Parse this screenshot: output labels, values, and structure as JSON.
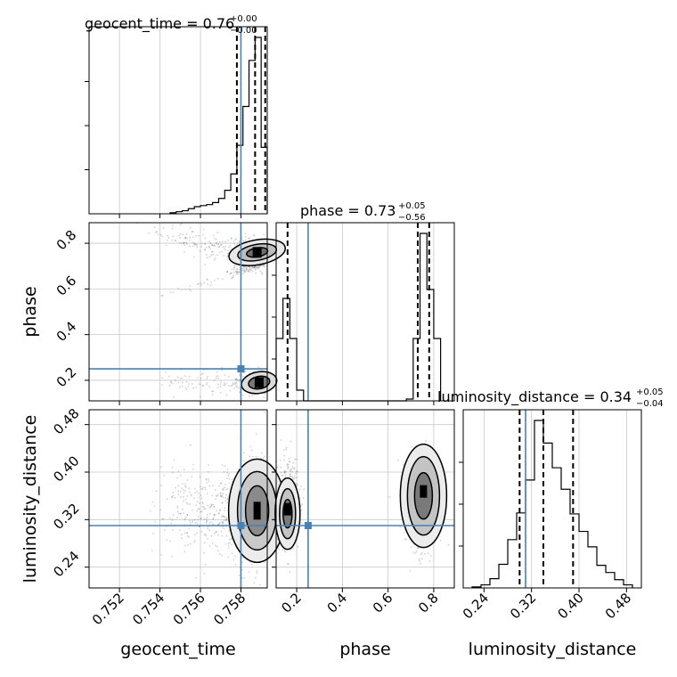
{
  "chart_data": {
    "type": "corner",
    "parameters": [
      "geocent_time",
      "phase",
      "luminosity_distance"
    ],
    "injection": {
      "geocent_time": 0.758,
      "phase": 0.25,
      "luminosity_distance": 0.31
    },
    "accent_color": "#4682b4",
    "ranges": {
      "geocent_time": [
        0.7505,
        0.7593
      ],
      "phase": [
        0.11,
        0.89
      ],
      "luminosity_distance": [
        0.205,
        0.505
      ]
    },
    "ticks": {
      "geocent_time": [
        "0.752",
        "0.754",
        "0.756",
        "0.758"
      ],
      "phase": [
        "0.2",
        "0.4",
        "0.6",
        "0.8"
      ],
      "luminosity_distance": [
        "0.24",
        "0.32",
        "0.40",
        "0.48"
      ]
    },
    "titles": {
      "geocent_time": {
        "text": "geocent_time = 0.76",
        "plus": "+0.00",
        "minus": "−0.00"
      },
      "phase": {
        "text": "phase = 0.73",
        "plus": "+0.05",
        "minus": "−0.56"
      },
      "luminosity_distance": {
        "text": "luminosity_distance = 0.34",
        "plus": "+0.05",
        "minus": "−0.04"
      }
    },
    "axis_labels": {
      "x": [
        "geocent_time",
        "phase",
        "luminosity_distance"
      ],
      "y": [
        "phase",
        "luminosity_distance"
      ]
    },
    "quantiles": {
      "geocent_time": [
        0.7578,
        0.7587,
        0.7592
      ],
      "phase": [
        0.16,
        0.73,
        0.78
      ],
      "luminosity_distance": [
        0.3,
        0.34,
        0.39
      ]
    },
    "hist_geocent_time": {
      "bin_edges": [
        0.7545,
        0.7548,
        0.7551,
        0.7554,
        0.7557,
        0.756,
        0.7563,
        0.7566,
        0.7569,
        0.7572,
        0.7575,
        0.7578,
        0.7581,
        0.7584,
        0.7587,
        0.759,
        0.7593
      ],
      "counts": [
        2,
        4,
        6,
        10,
        14,
        16,
        18,
        22,
        30,
        46,
        78,
        134,
        210,
        300,
        345,
        130
      ]
    },
    "hist_phase": {
      "bin_edges": [
        0.11,
        0.14,
        0.17,
        0.2,
        0.23,
        0.26,
        0.29,
        0.32,
        0.35,
        0.38,
        0.41,
        0.44,
        0.47,
        0.5,
        0.53,
        0.56,
        0.59,
        0.62,
        0.65,
        0.68,
        0.71,
        0.74,
        0.77,
        0.8,
        0.83
      ],
      "counts": [
        70,
        115,
        70,
        12,
        0,
        0,
        0,
        0,
        0,
        0,
        0,
        0,
        0,
        0,
        0,
        0,
        0,
        0,
        0,
        2,
        70,
        188,
        125,
        70
      ]
    },
    "hist_luminosity_distance": {
      "bin_edges": [
        0.22,
        0.235,
        0.25,
        0.265,
        0.28,
        0.295,
        0.31,
        0.325,
        0.34,
        0.355,
        0.37,
        0.385,
        0.4,
        0.415,
        0.43,
        0.445,
        0.46,
        0.475,
        0.49
      ],
      "counts": [
        1,
        3,
        9,
        23,
        47,
        73,
        105,
        163,
        141,
        117,
        96,
        72,
        55,
        40,
        22,
        15,
        8,
        3
      ]
    }
  }
}
